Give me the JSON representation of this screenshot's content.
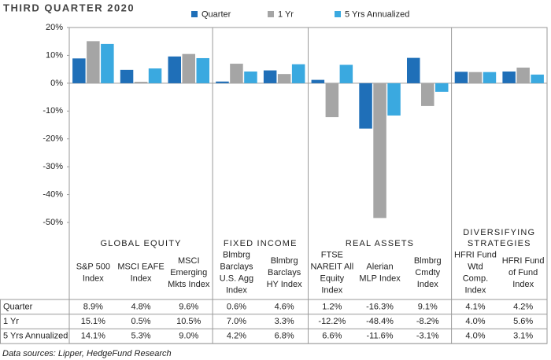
{
  "chart_data": {
    "type": "bar",
    "title": "THIRD QUARTER 2020",
    "source": "Data sources: Lipper, HedgeFund Research",
    "groups": [
      {
        "label": [
          "GLOBAL EQUITY"
        ],
        "categories": [
          [
            "S&P 500",
            "Index"
          ],
          [
            "MSCI EAFE",
            "Index"
          ],
          [
            "MSCI",
            "Emerging",
            "Mkts Index"
          ]
        ]
      },
      {
        "label": [
          "FIXED INCOME"
        ],
        "categories": [
          [
            "Blmbrg",
            "Barclays",
            "U.S. Agg",
            "Index"
          ],
          [
            "Blmbrg",
            "Barclays",
            "HY Index"
          ]
        ]
      },
      {
        "label": [
          "REAL ASSETS"
        ],
        "categories": [
          [
            "FTSE",
            "NAREIT All",
            "Equity",
            "Index"
          ],
          [
            "Alerian",
            "MLP Index"
          ],
          [
            "Blmbrg",
            "Cmdty",
            "Index"
          ]
        ]
      },
      {
        "label": [
          "DIVERSIFYING",
          "STRATEGIES"
        ],
        "categories": [
          [
            "HFRI Fund",
            "Wtd",
            "Comp.",
            "Index"
          ],
          [
            "HFRI Fund",
            "of Fund",
            "Index"
          ]
        ]
      }
    ],
    "series": [
      {
        "name": "Quarter",
        "color": "#1f6fb8",
        "values": [
          8.9,
          4.8,
          9.6,
          0.6,
          4.6,
          1.2,
          -16.3,
          9.1,
          4.1,
          4.2
        ],
        "value_labels": [
          "8.9%",
          "4.8%",
          "9.6%",
          "0.6%",
          "4.6%",
          "1.2%",
          "-16.3%",
          "9.1%",
          "4.1%",
          "4.2%"
        ]
      },
      {
        "name": "1 Yr",
        "color": "#a5a5a5",
        "values": [
          15.1,
          0.5,
          10.5,
          7.0,
          3.3,
          -12.2,
          -48.4,
          -8.2,
          4.0,
          5.6
        ],
        "value_labels": [
          "15.1%",
          "0.5%",
          "10.5%",
          "7.0%",
          "3.3%",
          "-12.2%",
          "-48.4%",
          "-8.2%",
          "4.0%",
          "5.6%"
        ]
      },
      {
        "name": "5 Yrs Annualized",
        "color": "#3aa9e0",
        "values": [
          14.1,
          5.3,
          9.0,
          4.2,
          6.8,
          6.6,
          -11.6,
          -3.1,
          4.0,
          3.1
        ],
        "value_labels": [
          "14.1%",
          "5.3%",
          "9.0%",
          "4.2%",
          "6.8%",
          "6.6%",
          "-11.6%",
          "-3.1%",
          "4.0%",
          "3.1%"
        ]
      }
    ],
    "ylim": [
      -50,
      20
    ],
    "yticks": [
      {
        "value": -50,
        "label": "-50%"
      },
      {
        "value": -40,
        "label": "-40%"
      },
      {
        "value": -30,
        "label": "-30%"
      },
      {
        "value": -20,
        "label": "-20%"
      },
      {
        "value": -10,
        "label": "-10%"
      },
      {
        "value": 0,
        "label": "0%"
      },
      {
        "value": 10,
        "label": "10%"
      },
      {
        "value": 20,
        "label": "20%"
      }
    ],
    "grid": false
  }
}
